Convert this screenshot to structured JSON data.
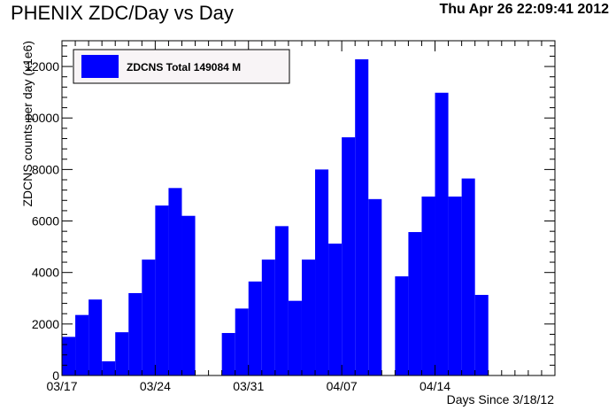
{
  "header": {
    "title": "PHENIX ZDC/Day vs Day",
    "timestamp": "Thu Apr 26 22:09:41 2012"
  },
  "chart_data": {
    "type": "bar",
    "title": "PHENIX ZDC/Day vs Day",
    "xlabel": "Days Since 3/18/12",
    "ylabel": "ZDCNS counts per day (x1e6)",
    "xlim": [
      0,
      37
    ],
    "ylim": [
      0,
      13000
    ],
    "x_tick_labels": [
      {
        "x": 0,
        "label": "03/17"
      },
      {
        "x": 7,
        "label": "03/24"
      },
      {
        "x": 14,
        "label": "03/31"
      },
      {
        "x": 21,
        "label": "04/07"
      },
      {
        "x": 28,
        "label": "04/14"
      }
    ],
    "y_tick_labels": [
      0,
      2000,
      4000,
      6000,
      8000,
      10000,
      12000
    ],
    "bar_color": "#0000ff",
    "legend": {
      "entry": "ZDCNS Total 149084 M",
      "position": "top-left"
    },
    "bars": [
      {
        "x": 0,
        "value": 1500
      },
      {
        "x": 1,
        "value": 2350
      },
      {
        "x": 2,
        "value": 2950
      },
      {
        "x": 3,
        "value": 550
      },
      {
        "x": 4,
        "value": 1680
      },
      {
        "x": 5,
        "value": 3200
      },
      {
        "x": 6,
        "value": 4500
      },
      {
        "x": 7,
        "value": 6600
      },
      {
        "x": 8,
        "value": 7280
      },
      {
        "x": 9,
        "value": 6200
      },
      {
        "x": 12,
        "value": 1650
      },
      {
        "x": 13,
        "value": 2600
      },
      {
        "x": 14,
        "value": 3650
      },
      {
        "x": 15,
        "value": 4500
      },
      {
        "x": 16,
        "value": 5800
      },
      {
        "x": 17,
        "value": 2900
      },
      {
        "x": 18,
        "value": 4500
      },
      {
        "x": 19,
        "value": 8000
      },
      {
        "x": 20,
        "value": 5120
      },
      {
        "x": 21,
        "value": 9250
      },
      {
        "x": 22,
        "value": 12280
      },
      {
        "x": 23,
        "value": 6850
      },
      {
        "x": 25,
        "value": 3850
      },
      {
        "x": 26,
        "value": 5570
      },
      {
        "x": 27,
        "value": 6950
      },
      {
        "x": 28,
        "value": 10980
      },
      {
        "x": 29,
        "value": 6950
      },
      {
        "x": 30,
        "value": 7650
      },
      {
        "x": 31,
        "value": 3130
      }
    ]
  }
}
